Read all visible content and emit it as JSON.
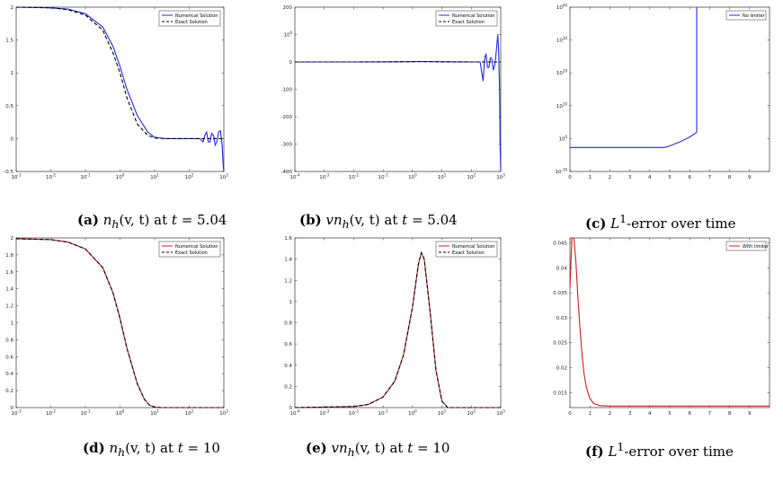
{
  "colors": {
    "blue": "#1f2bd6",
    "red": "#d01c1c",
    "exact": "#000000"
  },
  "captions": [
    {
      "tag": "(a)",
      "math": "n",
      "sub": "h",
      "rest": "(v, t)",
      "tail": " at ",
      "tvar": "t",
      "tval": " = 5.04"
    },
    {
      "tag": "(b)",
      "math": "vn",
      "sub": "h",
      "rest": "(v, t)",
      "tail": " at ",
      "tvar": "t",
      "tval": " = 5.04"
    },
    {
      "tag": "(c)",
      "text": "L",
      "sup": "1",
      "tail2": "-error over time"
    },
    {
      "tag": "(d)",
      "math": "n",
      "sub": "h",
      "rest": "(v, t)",
      "tail": " at ",
      "tvar": "t",
      "tval": " = 10"
    },
    {
      "tag": "(e)",
      "math": "vn",
      "sub": "h",
      "rest": "(v, t)",
      "tail": " at ",
      "tvar": "t",
      "tval": " = 10"
    },
    {
      "tag": "(f)",
      "text": "L",
      "sup": "1",
      "tail2": "-error over time"
    }
  ],
  "chart_data": [
    {
      "type": "line",
      "xscale": "log",
      "xlim": [
        -3,
        3
      ],
      "xticks": [
        "10-3",
        "10-2",
        "10-1",
        "100",
        "101",
        "102",
        "103"
      ],
      "ylim": [
        -0.5,
        2
      ],
      "yticks": [
        "-0.5",
        "0",
        "0.5",
        "1",
        "1.5",
        "2"
      ],
      "series": [
        {
          "name": "Numerical Solution",
          "color": "blue",
          "x": [
            -3,
            -2,
            -1.5,
            -1,
            -0.5,
            -0.2,
            0,
            0.2,
            0.5,
            0.8,
            1,
            1.3,
            1.6,
            2,
            2.3,
            2.4,
            2.45,
            2.5,
            2.55,
            2.6,
            2.65,
            2.7,
            2.75,
            2.8,
            2.85,
            2.9,
            2.95,
            2.98,
            3
          ],
          "y": [
            2,
            1.99,
            1.97,
            1.9,
            1.7,
            1.4,
            1.1,
            0.75,
            0.35,
            0.1,
            0.02,
            0,
            0,
            0,
            0,
            -0.05,
            0.05,
            0.1,
            -0.05,
            -0.05,
            0.08,
            0.05,
            -0.1,
            -0.05,
            0.1,
            0.12,
            -0.1,
            -0.4,
            -0.5
          ]
        },
        {
          "name": "Exact Solution",
          "color": "exact",
          "dash": true,
          "x": [
            -3,
            -2,
            -1.5,
            -1,
            -0.5,
            -0.2,
            0,
            0.2,
            0.5,
            0.8,
            1,
            1.3,
            2,
            3
          ],
          "y": [
            2,
            1.99,
            1.96,
            1.88,
            1.65,
            1.3,
            1.0,
            0.62,
            0.22,
            0.05,
            0.01,
            0,
            0,
            0
          ]
        }
      ],
      "legend": "top-right"
    },
    {
      "type": "line",
      "xscale": "log",
      "xlim": [
        -4,
        3
      ],
      "xticks": [
        "10-4",
        "10-3",
        "10-2",
        "10-1",
        "100",
        "101",
        "102",
        "103"
      ],
      "ylim": [
        -400,
        200
      ],
      "yticks": [
        "-400",
        "-300",
        "-200",
        "-100",
        "0",
        "100",
        "200"
      ],
      "series": [
        {
          "name": "Numerical Solution",
          "color": "blue",
          "x": [
            -4,
            -2,
            -1,
            0,
            0.3,
            1,
            2,
            2.3,
            2.4,
            2.45,
            2.5,
            2.55,
            2.6,
            2.65,
            2.7,
            2.75,
            2.8,
            2.85,
            2.9,
            2.93,
            2.96,
            2.98,
            3
          ],
          "y": [
            0,
            0,
            0.3,
            1,
            1.5,
            0.5,
            0,
            0,
            -70,
            10,
            30,
            -20,
            -20,
            15,
            10,
            -30,
            -10,
            40,
            100,
            40,
            -100,
            -300,
            -400
          ]
        },
        {
          "name": "Exact Solution",
          "color": "exact",
          "dash": true,
          "x": [
            -4,
            -2,
            -1,
            0,
            0.3,
            1,
            2,
            3
          ],
          "y": [
            0,
            0,
            0.3,
            1,
            1.5,
            0.5,
            0,
            0
          ]
        }
      ],
      "legend": "top-right"
    },
    {
      "type": "line",
      "xscale": "linear",
      "xlim": [
        0,
        10
      ],
      "xticks": [
        "0",
        "1",
        "2",
        "3",
        "4",
        "5",
        "6",
        "7",
        "8",
        "9"
      ],
      "yscale": "log",
      "ylim": [
        -10,
        40
      ],
      "yticks": [
        "10-10",
        "100",
        "1010",
        "1020",
        "1030",
        "1040"
      ],
      "series": [
        {
          "name": "No limiter",
          "color": "blue",
          "x": [
            0,
            4.6,
            4.8,
            5.0,
            5.5,
            6.0,
            6.3,
            6.35,
            6.35
          ],
          "y": [
            -2.7,
            -2.7,
            -2.6,
            -2.2,
            -1,
            0.5,
            1.7,
            2,
            40
          ]
        }
      ],
      "legend": "top-right"
    },
    {
      "type": "line",
      "xscale": "log",
      "xlim": [
        -3,
        3
      ],
      "xticks": [
        "10-3",
        "10-2",
        "10-1",
        "100",
        "101",
        "102",
        "103"
      ],
      "ylim": [
        0,
        2
      ],
      "yticks": [
        "0",
        "0.2",
        "0.4",
        "0.6",
        "0.8",
        "1",
        "1.2",
        "1.4",
        "1.6",
        "1.8",
        "2"
      ],
      "series": [
        {
          "name": "Numerical Solution",
          "color": "red",
          "x": [
            -3,
            -2,
            -1.5,
            -1,
            -0.5,
            -0.2,
            0,
            0.2,
            0.5,
            0.7,
            0.85,
            1,
            1.2,
            2,
            3
          ],
          "y": [
            1.99,
            1.98,
            1.95,
            1.87,
            1.65,
            1.35,
            1.05,
            0.7,
            0.28,
            0.1,
            0.03,
            0.005,
            0,
            0,
            0
          ]
        },
        {
          "name": "Exact Solution",
          "color": "exact",
          "dash": true,
          "x": [
            -3,
            -2,
            -1.5,
            -1,
            -0.5,
            -0.2,
            0,
            0.2,
            0.5,
            0.7,
            0.85,
            1,
            1.2,
            2,
            3
          ],
          "y": [
            1.99,
            1.98,
            1.95,
            1.87,
            1.65,
            1.35,
            1.05,
            0.7,
            0.28,
            0.1,
            0.03,
            0.005,
            0,
            0,
            0
          ]
        }
      ],
      "legend": "top-right"
    },
    {
      "type": "line",
      "xscale": "log",
      "xlim": [
        -4,
        3
      ],
      "xticks": [
        "10-4",
        "10-3",
        "10-2",
        "10-1",
        "100",
        "101",
        "102",
        "103"
      ],
      "ylim": [
        0,
        1.6
      ],
      "yticks": [
        "0",
        "0.2",
        "0.4",
        "0.6",
        "0.8",
        "1",
        "1.2",
        "1.4",
        "1.6"
      ],
      "series": [
        {
          "name": "Numerical Solution",
          "color": "red",
          "x": [
            -4,
            -2,
            -1.5,
            -1,
            -0.6,
            -0.3,
            0,
            0.2,
            0.3,
            0.4,
            0.6,
            0.8,
            1,
            1.2,
            1.5,
            3
          ],
          "y": [
            0,
            0.01,
            0.03,
            0.1,
            0.25,
            0.5,
            0.95,
            1.35,
            1.46,
            1.4,
            0.9,
            0.35,
            0.06,
            0,
            0,
            0
          ]
        },
        {
          "name": "Exact Solution",
          "color": "exact",
          "dash": true,
          "x": [
            -4,
            -2,
            -1.5,
            -1,
            -0.6,
            -0.3,
            0,
            0.2,
            0.3,
            0.4,
            0.6,
            0.8,
            1,
            1.2,
            1.5,
            3
          ],
          "y": [
            0,
            0.01,
            0.03,
            0.1,
            0.25,
            0.5,
            0.95,
            1.35,
            1.46,
            1.4,
            0.9,
            0.35,
            0.06,
            0,
            0,
            0
          ]
        }
      ],
      "legend": "top-right"
    },
    {
      "type": "line",
      "xscale": "linear",
      "xlim": [
        0,
        10
      ],
      "xticks": [
        "0",
        "1",
        "2",
        "3",
        "4",
        "5",
        "6",
        "7",
        "8",
        "9"
      ],
      "ylim": [
        0.012,
        0.046
      ],
      "yticks": [
        "0.015",
        "0.02",
        "0.025",
        "0.03",
        "0.035",
        "0.04",
        "0.045"
      ],
      "series": [
        {
          "name": "With limiter",
          "color": "red",
          "x": [
            0,
            0.1,
            0.2,
            0.3,
            0.4,
            0.5,
            0.6,
            0.7,
            0.8,
            0.9,
            1,
            1.2,
            1.5,
            2,
            10
          ],
          "y": [
            0.036,
            0.046,
            0.046,
            0.041,
            0.034,
            0.028,
            0.023,
            0.019,
            0.0165,
            0.015,
            0.0138,
            0.0128,
            0.0124,
            0.0123,
            0.0123
          ]
        }
      ],
      "legend": "top-right"
    }
  ]
}
